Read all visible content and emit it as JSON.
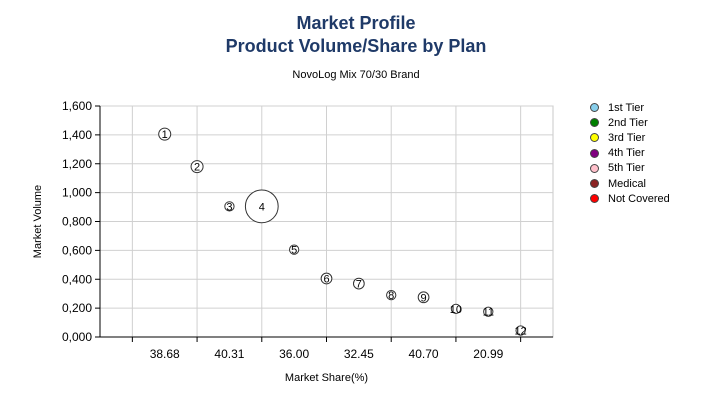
{
  "header": {
    "title_line1": "Market Profile",
    "title_line2": "Product Volume/Share by Plan",
    "subtitle": "NovoLog Mix 70/30 Brand"
  },
  "legend": {
    "items": [
      {
        "label": "1st Tier",
        "color": "#87ceeb"
      },
      {
        "label": "2nd Tier",
        "color": "#008000"
      },
      {
        "label": "3rd Tier",
        "color": "#ffff00"
      },
      {
        "label": "4th Tier",
        "color": "#800080"
      },
      {
        "label": "5th Tier",
        "color": "#ffc0cb"
      },
      {
        "label": "Medical",
        "color": "#8b2323"
      },
      {
        "label": "Not Covered",
        "color": "#ff0000"
      }
    ]
  },
  "chart_data": {
    "type": "scatter",
    "title": "Market Profile Product Volume/Share by Plan",
    "subtitle": "NovoLog Mix 70/30 Brand",
    "xlabel": "Market Share(%)",
    "ylabel": "Market Volume",
    "x_tick_labels": [
      "38.68",
      "40.31",
      "36.00",
      "32.45",
      "40.70",
      "20.99"
    ],
    "y_tick_labels": [
      "0,000",
      "0,200",
      "0,400",
      "0,600",
      "0,800",
      "1,000",
      "1,200",
      "1,400",
      "1,600"
    ],
    "ylim": [
      0,
      1.6
    ],
    "grid": true,
    "legend_position": "right",
    "points": [
      {
        "label": "1",
        "x": 1.5,
        "y": 1.405,
        "size": 1
      },
      {
        "label": "2",
        "x": 2.0,
        "y": 1.18,
        "size": 1
      },
      {
        "label": "3",
        "x": 2.5,
        "y": 0.905,
        "size": 0.6
      },
      {
        "label": "4",
        "x": 3.0,
        "y": 0.905,
        "size": 3
      },
      {
        "label": "5",
        "x": 3.5,
        "y": 0.605,
        "size": 0.6
      },
      {
        "label": "6",
        "x": 4.0,
        "y": 0.405,
        "size": 0.8
      },
      {
        "label": "7",
        "x": 4.5,
        "y": 0.37,
        "size": 0.8
      },
      {
        "label": "8",
        "x": 5.0,
        "y": 0.29,
        "size": 0.6
      },
      {
        "label": "9",
        "x": 5.5,
        "y": 0.275,
        "size": 0.8
      },
      {
        "label": "10",
        "x": 6.0,
        "y": 0.195,
        "size": 0.6
      },
      {
        "label": "11",
        "x": 6.5,
        "y": 0.175,
        "size": 0.6
      },
      {
        "label": "12",
        "x": 7.0,
        "y": 0.045,
        "size": 0.6
      }
    ]
  }
}
